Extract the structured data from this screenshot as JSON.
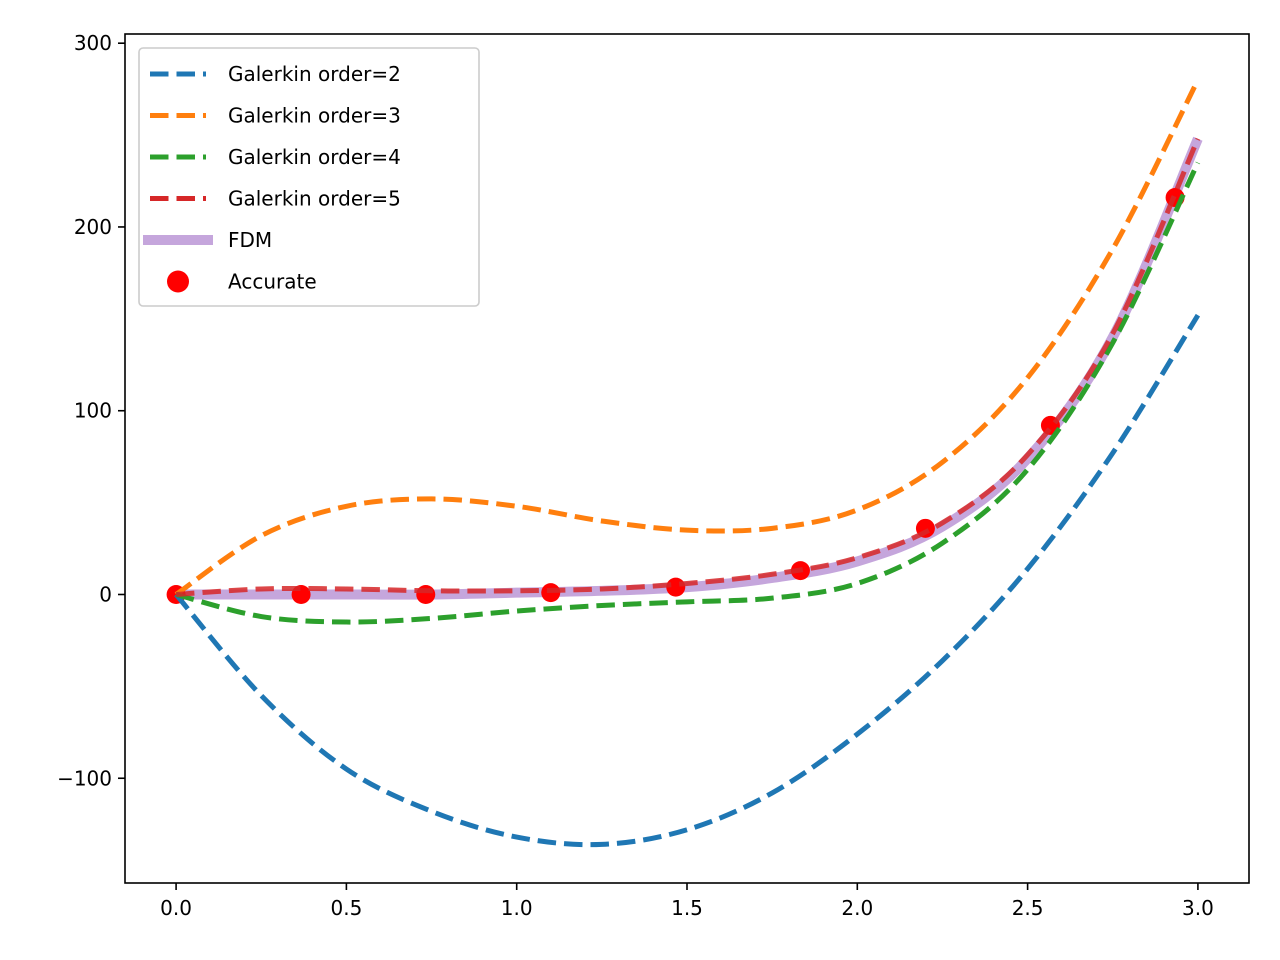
{
  "chart_data": {
    "type": "line",
    "title": "",
    "xlabel": "",
    "ylabel": "",
    "xlim": [
      -0.15,
      3.15
    ],
    "ylim": [
      -157,
      305
    ],
    "xticks": [
      0.0,
      0.5,
      1.0,
      1.5,
      2.0,
      2.5,
      3.0
    ],
    "xtick_labels": [
      "0.0",
      "0.5",
      "1.0",
      "1.5",
      "2.0",
      "2.5",
      "3.0"
    ],
    "yticks": [
      -100,
      0,
      100,
      200,
      300
    ],
    "ytick_labels": [
      "−100",
      "0",
      "100",
      "200",
      "300"
    ],
    "grid": false,
    "legend_position": "top-left",
    "series": [
      {
        "name": "Galerkin order=2",
        "style": "dashed",
        "color": "#1f77b4",
        "x": [
          0,
          0.25,
          0.5,
          0.75,
          1.0,
          1.25,
          1.5,
          1.75,
          2.0,
          2.25,
          2.5,
          2.75,
          3.0
        ],
        "values": [
          0,
          -55,
          -95,
          -118,
          -132,
          -136,
          -128,
          -108,
          -76,
          -36,
          14,
          77,
          152
        ]
      },
      {
        "name": "Galerkin order=3",
        "style": "dashed",
        "color": "#ff7f0e",
        "x": [
          0,
          0.25,
          0.5,
          0.75,
          1.0,
          1.25,
          1.5,
          1.75,
          2.0,
          2.25,
          2.5,
          2.75,
          3.0
        ],
        "values": [
          0,
          32,
          48,
          52,
          48,
          40,
          35,
          36,
          46,
          72,
          118,
          188,
          280
        ]
      },
      {
        "name": "Galerkin order=4",
        "style": "dashed",
        "color": "#2ca02c",
        "x": [
          0,
          0.25,
          0.5,
          0.75,
          1.0,
          1.25,
          1.5,
          1.75,
          2.0,
          2.25,
          2.5,
          2.75,
          3.0
        ],
        "values": [
          0,
          -12,
          -15,
          -13,
          -9,
          -6,
          -4,
          -2,
          6,
          28,
          68,
          137,
          235
        ]
      },
      {
        "name": "Galerkin order=5",
        "style": "dashed",
        "color": "#d62728",
        "x": [
          0,
          0.25,
          0.5,
          0.75,
          1.0,
          1.25,
          1.5,
          1.75,
          2.0,
          2.25,
          2.5,
          2.75,
          3.0
        ],
        "values": [
          0,
          3,
          3,
          2,
          2,
          3,
          6,
          11,
          20,
          39,
          76,
          142,
          248
        ]
      },
      {
        "name": "FDM",
        "style": "solid",
        "color": "#c5a6dc",
        "x": [
          0,
          0.25,
          0.5,
          0.75,
          1.0,
          1.25,
          1.5,
          1.75,
          2.0,
          2.25,
          2.5,
          2.75,
          3.0
        ],
        "values": [
          0,
          0,
          0,
          0,
          1,
          2,
          4,
          9,
          18,
          37,
          74,
          140,
          248
        ]
      },
      {
        "name": "Accurate",
        "style": "scatter",
        "color": "#ff0000",
        "x": [
          0,
          0.367,
          0.733,
          1.1,
          1.467,
          1.833,
          2.2,
          2.567,
          2.933
        ],
        "values": [
          0,
          0,
          0,
          1,
          4,
          13,
          36,
          92,
          216
        ]
      }
    ]
  }
}
